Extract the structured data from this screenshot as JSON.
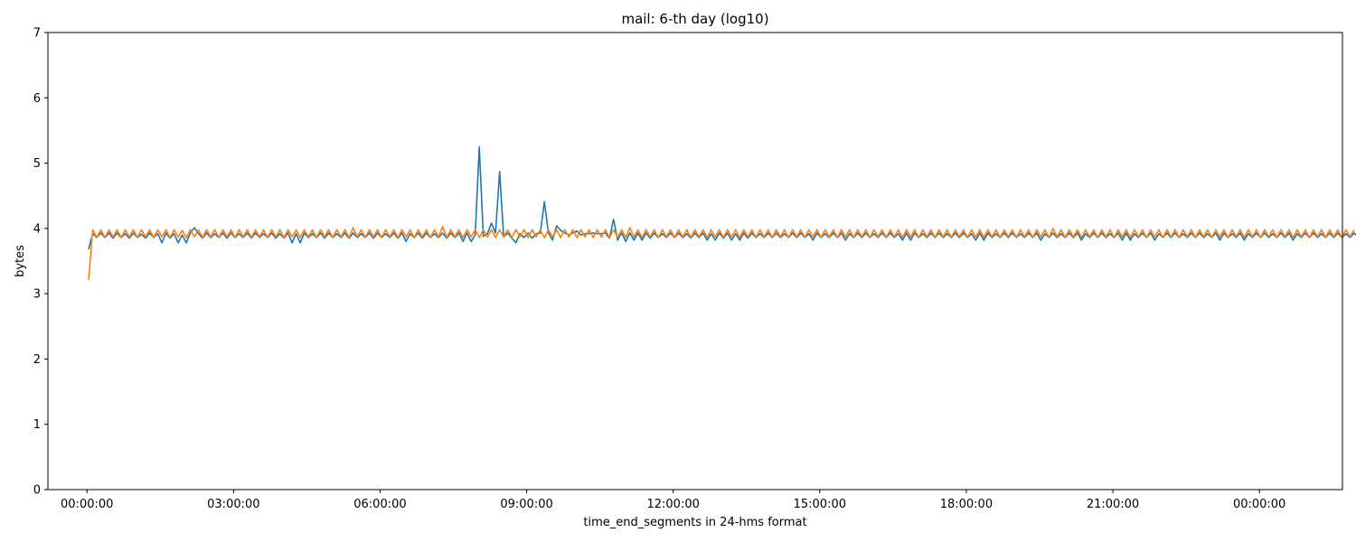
{
  "chart_data": {
    "type": "line",
    "title": "mail: 6-th day (log10)",
    "xlabel": "time_end_segments in 24-hms format",
    "ylabel": "bytes",
    "ylim": [
      0,
      7
    ],
    "xlim_hours": [
      -0.8,
      25.7
    ],
    "yticks": [
      {
        "value": 0,
        "label": "0"
      },
      {
        "value": 1,
        "label": "1"
      },
      {
        "value": 2,
        "label": "2"
      },
      {
        "value": 3,
        "label": "3"
      },
      {
        "value": 4,
        "label": "4"
      },
      {
        "value": 5,
        "label": "5"
      },
      {
        "value": 6,
        "label": "6"
      },
      {
        "value": 7,
        "label": "7"
      }
    ],
    "xticks": [
      {
        "value": 0,
        "label": "00:00:00"
      },
      {
        "value": 3,
        "label": "03:00:00"
      },
      {
        "value": 6,
        "label": "06:00:00"
      },
      {
        "value": 9,
        "label": "09:00:00"
      },
      {
        "value": 12,
        "label": "12:00:00"
      },
      {
        "value": 15,
        "label": "15:00:00"
      },
      {
        "value": 18,
        "label": "18:00:00"
      },
      {
        "value": 21,
        "label": "21:00:00"
      },
      {
        "value": 24,
        "label": "00:00:00"
      }
    ],
    "x_start_hours": 0.0333,
    "x_step_hours": 0.0833,
    "grid": false,
    "series": [
      {
        "color": "#1f77b4",
        "values": [
          3.68,
          3.92,
          3.86,
          3.93,
          3.86,
          3.93,
          3.85,
          3.93,
          3.86,
          3.92,
          3.85,
          3.93,
          3.86,
          3.91,
          3.85,
          3.93,
          3.86,
          3.92,
          3.78,
          3.93,
          3.85,
          3.92,
          3.78,
          3.9,
          3.78,
          3.93,
          4.01,
          3.92,
          3.85,
          3.93,
          3.86,
          3.92,
          3.86,
          3.93,
          3.85,
          3.93,
          3.86,
          3.92,
          3.86,
          3.93,
          3.85,
          3.93,
          3.86,
          3.92,
          3.86,
          3.93,
          3.85,
          3.92,
          3.85,
          3.93,
          3.78,
          3.92,
          3.78,
          3.93,
          3.86,
          3.92,
          3.86,
          3.93,
          3.85,
          3.93,
          3.86,
          3.92,
          3.86,
          3.93,
          3.85,
          3.93,
          3.86,
          3.92,
          3.86,
          3.93,
          3.85,
          3.93,
          3.86,
          3.92,
          3.86,
          3.93,
          3.85,
          3.93,
          3.8,
          3.92,
          3.86,
          3.93,
          3.85,
          3.93,
          3.86,
          3.92,
          3.86,
          3.93,
          3.85,
          3.93,
          3.86,
          3.93,
          3.8,
          3.93,
          3.8,
          3.9,
          5.25,
          3.88,
          3.92,
          4.08,
          3.93,
          4.87,
          3.87,
          3.93,
          3.85,
          3.78,
          3.92,
          3.86,
          3.93,
          3.85,
          3.92,
          3.93,
          4.41,
          3.93,
          3.82,
          4.04,
          3.97,
          3.93,
          3.9,
          3.93,
          3.96,
          3.9,
          3.92,
          3.92,
          3.93,
          3.92,
          3.92,
          3.93,
          3.85,
          4.14,
          3.82,
          3.93,
          3.8,
          3.93,
          3.82,
          3.93,
          3.82,
          3.93,
          3.85,
          3.93,
          3.86,
          3.92,
          3.86,
          3.93,
          3.86,
          3.93,
          3.86,
          3.92,
          3.85,
          3.93,
          3.86,
          3.93,
          3.82,
          3.92,
          3.82,
          3.93,
          3.85,
          3.93,
          3.82,
          3.92,
          3.82,
          3.93,
          3.85,
          3.93,
          3.86,
          3.92,
          3.86,
          3.93,
          3.86,
          3.93,
          3.86,
          3.92,
          3.86,
          3.93,
          3.86,
          3.93,
          3.86,
          3.92,
          3.82,
          3.93,
          3.86,
          3.92,
          3.86,
          3.93,
          3.86,
          3.93,
          3.82,
          3.92,
          3.86,
          3.93,
          3.86,
          3.93,
          3.86,
          3.92,
          3.86,
          3.93,
          3.86,
          3.93,
          3.86,
          3.92,
          3.82,
          3.93,
          3.82,
          3.93,
          3.86,
          3.92,
          3.86,
          3.93,
          3.86,
          3.93,
          3.86,
          3.92,
          3.86,
          3.93,
          3.86,
          3.93,
          3.86,
          3.92,
          3.82,
          3.93,
          3.82,
          3.93,
          3.86,
          3.92,
          3.86,
          3.93,
          3.86,
          3.93,
          3.86,
          3.92,
          3.86,
          3.93,
          3.86,
          3.93,
          3.82,
          3.92,
          3.86,
          3.93,
          3.86,
          3.92,
          3.86,
          3.93,
          3.86,
          3.93,
          3.82,
          3.92,
          3.86,
          3.93,
          3.86,
          3.93,
          3.86,
          3.92,
          3.86,
          3.93,
          3.82,
          3.93,
          3.82,
          3.92,
          3.86,
          3.93,
          3.86,
          3.93,
          3.82,
          3.92,
          3.86,
          3.93,
          3.86,
          3.93,
          3.86,
          3.92,
          3.86,
          3.93,
          3.86,
          3.93,
          3.86,
          3.92,
          3.86,
          3.93,
          3.82,
          3.93,
          3.86,
          3.92,
          3.86,
          3.93,
          3.82,
          3.92,
          3.86,
          3.93,
          3.86,
          3.93,
          3.86,
          3.92,
          3.86,
          3.93,
          3.86,
          3.93,
          3.82,
          3.92,
          3.86,
          3.93,
          3.86,
          3.93,
          3.86,
          3.92,
          3.86,
          3.93,
          3.86,
          3.93,
          3.86,
          3.92,
          3.86,
          3.93,
          3.86,
          3.93,
          3.86,
          3.92,
          3.82,
          3.93,
          3.86,
          3.92,
          3.4
        ]
      },
      {
        "color": "#ff7f0e",
        "values": [
          3.21,
          3.98,
          3.86,
          3.98,
          3.86,
          3.98,
          3.87,
          3.98,
          3.86,
          3.98,
          3.87,
          3.98,
          3.86,
          3.98,
          3.87,
          3.98,
          3.86,
          3.98,
          3.87,
          3.98,
          3.86,
          3.98,
          3.87,
          3.97,
          3.86,
          3.98,
          3.87,
          3.98,
          3.86,
          3.98,
          3.87,
          3.98,
          3.86,
          3.98,
          3.87,
          3.98,
          3.86,
          3.98,
          3.87,
          3.98,
          3.86,
          3.98,
          3.87,
          3.98,
          3.86,
          3.98,
          3.87,
          3.98,
          3.86,
          3.98,
          3.87,
          3.98,
          3.86,
          3.98,
          3.87,
          3.98,
          3.86,
          3.98,
          3.87,
          3.98,
          3.86,
          3.98,
          3.87,
          3.98,
          3.86,
          4.01,
          3.87,
          3.98,
          3.86,
          3.98,
          3.87,
          3.98,
          3.86,
          3.98,
          3.87,
          3.98,
          3.86,
          3.98,
          3.87,
          3.98,
          3.86,
          3.98,
          3.87,
          3.98,
          3.86,
          3.98,
          3.87,
          4.03,
          3.86,
          3.98,
          3.87,
          3.98,
          3.86,
          3.98,
          3.87,
          3.98,
          3.86,
          3.98,
          3.87,
          3.98,
          3.86,
          3.98,
          3.87,
          3.98,
          3.86,
          3.98,
          3.87,
          3.98,
          3.86,
          3.98,
          3.87,
          3.98,
          3.86,
          3.98,
          3.87,
          3.98,
          3.86,
          3.98,
          3.87,
          3.98,
          3.86,
          3.98,
          3.87,
          3.98,
          3.86,
          3.98,
          3.87,
          3.98,
          3.86,
          3.98,
          3.87,
          3.98,
          3.86,
          4.01,
          3.87,
          3.98,
          3.86,
          3.98,
          3.87,
          3.98,
          3.86,
          3.98,
          3.87,
          3.98,
          3.86,
          3.98,
          3.87,
          3.98,
          3.86,
          3.98,
          3.87,
          3.98,
          3.86,
          3.98,
          3.87,
          3.98,
          3.86,
          3.98,
          3.87,
          3.98,
          3.86,
          3.98,
          3.87,
          3.98,
          3.86,
          3.98,
          3.87,
          3.98,
          3.86,
          3.98,
          3.87,
          3.98,
          3.86,
          3.98,
          3.87,
          3.98,
          3.86,
          3.98,
          3.87,
          3.98,
          3.86,
          3.98,
          3.87,
          3.98,
          3.86,
          3.98,
          3.87,
          3.98,
          3.86,
          3.98,
          3.87,
          3.98,
          3.86,
          3.98,
          3.87,
          3.98,
          3.86,
          3.98,
          3.87,
          3.98,
          3.86,
          3.98,
          3.87,
          3.98,
          3.86,
          3.98,
          3.87,
          3.98,
          3.86,
          3.98,
          3.87,
          3.98,
          3.86,
          3.98,
          3.87,
          3.98,
          3.86,
          3.98,
          3.87,
          3.98,
          3.86,
          3.98,
          3.87,
          3.98,
          3.86,
          3.98,
          3.87,
          3.98,
          3.86,
          3.98,
          3.87,
          3.98,
          3.86,
          3.98,
          3.87,
          3.98,
          3.86,
          4.0,
          3.87,
          3.98,
          3.86,
          3.98,
          3.87,
          3.98,
          3.86,
          3.98,
          3.87,
          3.98,
          3.86,
          3.98,
          3.87,
          3.98,
          3.86,
          3.98,
          3.87,
          3.98,
          3.86,
          3.98,
          3.87,
          3.98,
          3.86,
          3.98,
          3.87,
          3.98,
          3.86,
          3.98,
          3.87,
          3.98,
          3.86,
          3.98,
          3.87,
          3.98,
          3.86,
          3.98,
          3.87,
          3.98,
          3.86,
          3.98,
          3.87,
          3.98,
          3.86,
          3.98,
          3.87,
          3.98,
          3.86,
          3.98,
          3.87,
          3.98,
          3.86,
          3.98,
          3.87,
          3.98,
          3.86,
          3.98,
          3.87,
          3.98,
          3.86,
          3.98,
          3.87,
          3.98,
          3.86,
          3.98,
          3.87,
          3.98,
          3.86,
          3.98,
          3.87,
          3.98,
          3.86,
          3.98,
          3.87,
          3.98
        ]
      }
    ]
  }
}
